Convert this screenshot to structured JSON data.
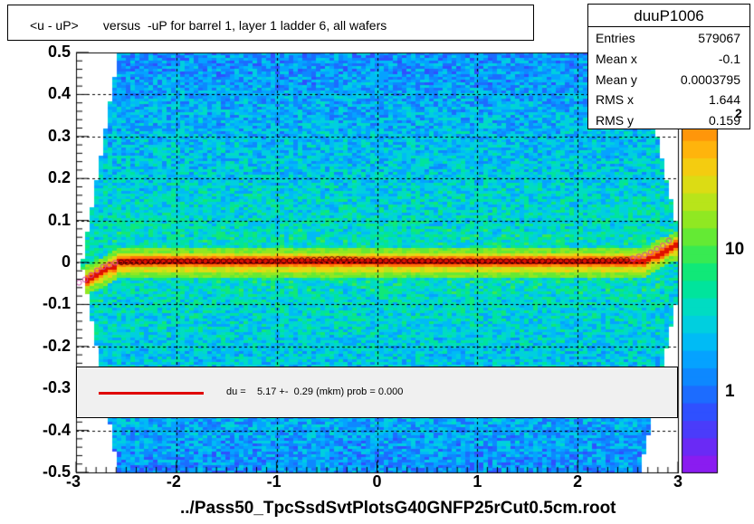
{
  "title": "<u - uP>       versus  -uP for barrel 1, layer 1 ladder 6, all wafers",
  "stats": {
    "name": "duuP1006",
    "rows": [
      {
        "key": "Entries",
        "value": "579067"
      },
      {
        "key": "Mean x",
        "value": "-0.1"
      },
      {
        "key": "Mean y",
        "value": "0.0003795"
      },
      {
        "key": "RMS x",
        "value": "1.644"
      },
      {
        "key": "RMS y",
        "value": "0.159"
      }
    ]
  },
  "fit": {
    "text": "du =    5.17 +-  0.29 (mkm) prob = 0.000",
    "line_color": "#e00000"
  },
  "x_title": "../Pass50_TpcSsdSvtPlotsG40GNFP25rCut0.5cm.root",
  "colorbar": {
    "labels": [
      "1",
      "10",
      "10"
    ],
    "exponent_fragment": "2"
  },
  "chart_data": {
    "type": "heatmap",
    "title": "<u - uP>       versus  -uP for barrel 1, layer 1 ladder 6, all wafers",
    "xlabel": "../Pass50_TpcSsdSvtPlotsG40GNFP25rCut0.5cm.root",
    "ylabel": "",
    "xlim": [
      -3,
      3
    ],
    "ylim": [
      -0.5,
      0.5
    ],
    "x_ticks": [
      "-3",
      "-2",
      "-1",
      "0",
      "1",
      "2",
      "3"
    ],
    "y_ticks": [
      "-0.5",
      "-0.4",
      "-0.3",
      "-0.2",
      "-0.1",
      "0",
      "0.1",
      "0.2",
      "0.3",
      "0.4",
      "0.5"
    ],
    "z_scale": "log",
    "grid": true,
    "band_center_y": 0.0,
    "profile_points": [
      {
        "x": -2.95,
        "y": -0.048
      },
      {
        "x": -2.85,
        "y": -0.03
      },
      {
        "x": -2.75,
        "y": -0.012
      },
      {
        "x": -2.6,
        "y": 0.0
      },
      {
        "x": -2.0,
        "y": 0.003
      },
      {
        "x": -1.0,
        "y": 0.003
      },
      {
        "x": -0.4,
        "y": 0.008
      },
      {
        "x": 0.0,
        "y": 0.004
      },
      {
        "x": 1.0,
        "y": 0.003
      },
      {
        "x": 2.0,
        "y": 0.003
      },
      {
        "x": 2.5,
        "y": 0.006
      },
      {
        "x": 2.7,
        "y": 0.02
      },
      {
        "x": 2.85,
        "y": 0.04
      },
      {
        "x": 2.95,
        "y": 0.06
      }
    ],
    "fit_text": "du =    5.17 +-  0.29 (mkm) prob = 0.000"
  },
  "colors": {
    "band": "#cc0000",
    "profile_marker": "#cc44aa",
    "fit": "#e00000"
  }
}
